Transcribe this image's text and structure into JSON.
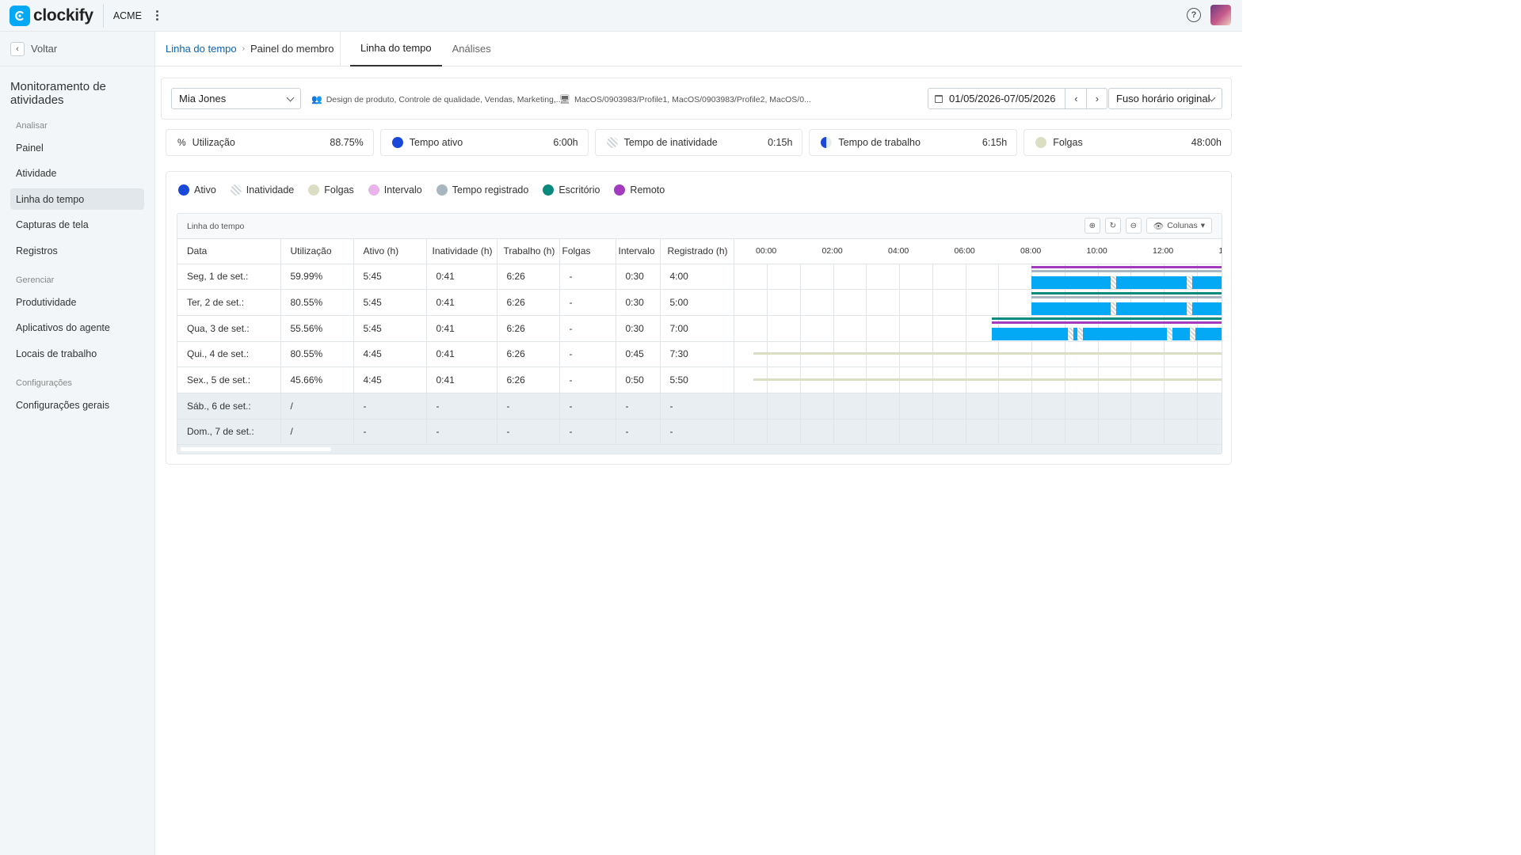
{
  "app": {
    "name": "clockify",
    "workspace": "ACME"
  },
  "sidebar": {
    "back_label": "Voltar",
    "title": "Monitoramento de atividades",
    "sections": [
      {
        "label": "Analisar",
        "items": [
          "Painel",
          "Atividade",
          "Linha do tempo",
          "Capturas de tela",
          "Registros"
        ]
      },
      {
        "label": "Gerenciar",
        "items": [
          "Produtividade",
          "Aplicativos do agente",
          "Locais de trabalho"
        ]
      },
      {
        "label": "Configurações",
        "items": [
          "Configurações gerais"
        ]
      }
    ],
    "active_item": "Linha do tempo"
  },
  "breadcrumb": {
    "parent": "Linha do tempo",
    "current": "Painel do membro"
  },
  "tabs": [
    "Linha do tempo",
    "Análises"
  ],
  "filters": {
    "member": "Mia Jones",
    "groups": "Design de produto, Controle de qualidade, Vendas, Marketing,...",
    "devices": "MacOS/0903983/Profile1, MacOS/0903983/Profile2, MacOS/0...",
    "date_range": "01/05/2026-07/05/2026",
    "timezone": "Fuso horário original"
  },
  "stats": [
    {
      "label": "Utilização",
      "value": "88.75%",
      "color": ""
    },
    {
      "label": "Tempo ativo",
      "value": "6:00h",
      "color": "#1a48d8"
    },
    {
      "label": "Tempo de inatividade",
      "value": "0:15h",
      "color": "#d9dee2"
    },
    {
      "label": "Tempo de trabalho",
      "value": "6:15h",
      "color": "#1a48d8"
    },
    {
      "label": "Folgas",
      "value": "48:00h",
      "color": "#dcdec4"
    }
  ],
  "legend": [
    {
      "label": "Ativo",
      "color": "#1a48d8"
    },
    {
      "label": "Inatividade",
      "color": "#e8ecef"
    },
    {
      "label": "Folgas",
      "color": "#dcdec4"
    },
    {
      "label": "Intervalo",
      "color": "#e8b4ea"
    },
    {
      "label": "Tempo registrado",
      "color": "#a7b6c0"
    },
    {
      "label": "Escritório",
      "color": "#0a8a7c"
    },
    {
      "label": "Remoto",
      "color": "#a23bbe"
    }
  ],
  "table": {
    "title": "Linha do tempo",
    "columns_button": "Colunas",
    "headers": [
      "Data",
      "Utilização",
      "Ativo (h)",
      "Inatividade (h)",
      "Trabalho (h)",
      "Folgas",
      "Intervalo",
      "Registrado (h)"
    ],
    "hours": [
      "00:00",
      "02:00",
      "04:00",
      "06:00",
      "08:00",
      "10:00",
      "12:00",
      "1"
    ],
    "rows": [
      {
        "date": "Seg, 1 de set.:",
        "util": "59.99%",
        "active": "5:45",
        "idle": "0:41",
        "work": "6:26",
        "off": "-",
        "break": "0:30",
        "tracked": "4:00",
        "weekend": false
      },
      {
        "date": "Ter, 2 de set.:",
        "util": "80.55%",
        "active": "5:45",
        "idle": "0:41",
        "work": "6:26",
        "off": "-",
        "break": "0:30",
        "tracked": "5:00",
        "weekend": false
      },
      {
        "date": "Qua, 3 de set.:",
        "util": "55.56%",
        "active": "5:45",
        "idle": "0:41",
        "work": "6:26",
        "off": "-",
        "break": "0:30",
        "tracked": "7:00",
        "weekend": false
      },
      {
        "date": "Qui., 4 de set.:",
        "util": "80.55%",
        "active": "4:45",
        "idle": "0:41",
        "work": "6:26",
        "off": "-",
        "break": "0:45",
        "tracked": "7:30",
        "weekend": false
      },
      {
        "date": "Sex., 5 de set.:",
        "util": "45.66%",
        "active": "4:45",
        "idle": "0:41",
        "work": "6:26",
        "off": "-",
        "break": "0:50",
        "tracked": "5:50",
        "weekend": false
      },
      {
        "date": "Sáb., 6 de set.:",
        "util": "/",
        "active": "-",
        "idle": "-",
        "work": "-",
        "off": "-",
        "break": "-",
        "tracked": "-",
        "weekend": true
      },
      {
        "date": "Dom., 7 de set.:",
        "util": "/",
        "active": "-",
        "idle": "-",
        "work": "-",
        "off": "-",
        "break": "-",
        "tracked": "-",
        "weekend": true
      }
    ],
    "timeline_hours": [
      {
        "start": 8.0,
        "end": 14.0,
        "kinds": [
          "remoto",
          "registrado",
          "ativo"
        ]
      },
      {
        "start": 8.0,
        "end": 14.0,
        "kinds": [
          "escritorio",
          "registrado",
          "ativo"
        ]
      },
      {
        "start": 6.8,
        "end": 14.0,
        "kinds": [
          "escritorio",
          "remoto",
          "ativo"
        ]
      },
      {
        "start": -0.4,
        "end": 14.0,
        "kinds": [
          "folgas"
        ]
      },
      {
        "start": -0.4,
        "end": 14.0,
        "kinds": [
          "folgas"
        ]
      }
    ]
  }
}
